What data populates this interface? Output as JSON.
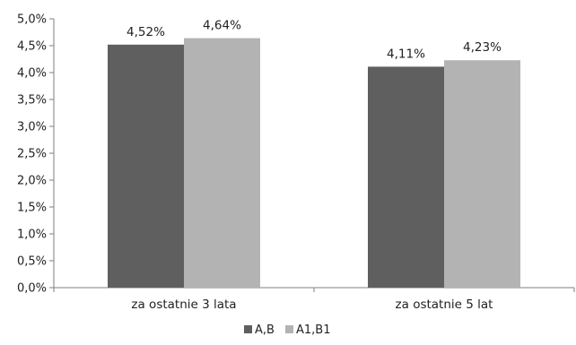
{
  "chart_data": {
    "type": "bar",
    "title": "",
    "xlabel": "",
    "ylabel": "",
    "categories": [
      "za ostatnie 3 lata",
      "za ostatnie 5 lat"
    ],
    "series": [
      {
        "name": "A,B",
        "values": [
          4.52,
          4.11
        ],
        "labels": [
          "4,52%",
          "4,11%"
        ],
        "color": "#5f5f5f"
      },
      {
        "name": "A1,B1",
        "values": [
          4.64,
          4.23
        ],
        "labels": [
          "4,64%",
          "4,23%"
        ],
        "color": "#b3b3b3"
      }
    ],
    "ylim": [
      0,
      5.0
    ],
    "yticks": [
      0,
      0.5,
      1.0,
      1.5,
      2.0,
      2.5,
      3.0,
      3.5,
      4.0,
      4.5,
      5.0
    ],
    "ytick_labels": [
      "0,0%",
      "0,5%",
      "1,0%",
      "1,5%",
      "2,0%",
      "2,5%",
      "3,0%",
      "3,5%",
      "4,0%",
      "4,5%",
      "5,0%"
    ],
    "grid": false,
    "legend_position": "bottom"
  }
}
